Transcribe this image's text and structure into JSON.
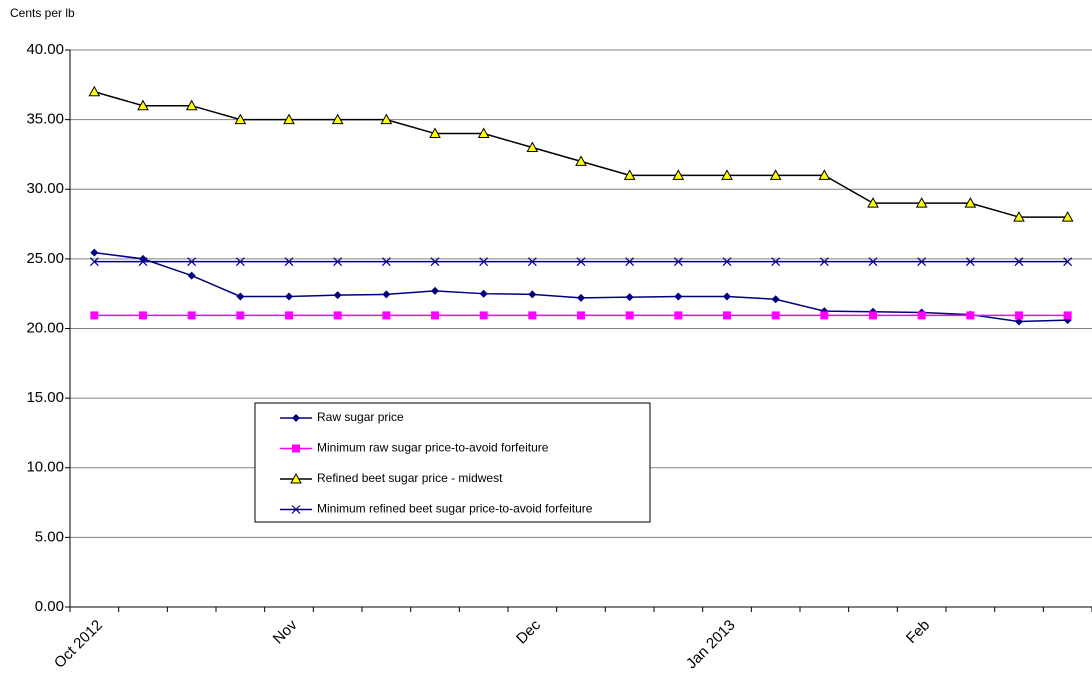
{
  "chart_data": {
    "type": "line",
    "y_label": "Cents per lb",
    "categories": [
      "Oct 2012",
      null,
      null,
      null,
      "Nov",
      null,
      null,
      null,
      null,
      "Dec",
      null,
      null,
      null,
      "Jan 2013",
      null,
      null,
      null,
      "Feb",
      null,
      null,
      null
    ],
    "series": [
      {
        "name": "Raw sugar price",
        "color": "#000080",
        "marker": "diamond",
        "values": [
          25.45,
          25.0,
          23.8,
          22.3,
          22.3,
          22.4,
          22.45,
          22.7,
          22.5,
          22.45,
          22.2,
          22.25,
          22.3,
          22.3,
          22.1,
          21.25,
          21.2,
          21.15,
          21.0,
          20.5,
          20.6
        ]
      },
      {
        "name": "Minimum raw sugar price-to-avoid forfeiture",
        "color": "#ff00ff",
        "marker": "square",
        "values": [
          20.94,
          20.94,
          20.94,
          20.94,
          20.94,
          20.94,
          20.94,
          20.94,
          20.94,
          20.94,
          20.94,
          20.94,
          20.94,
          20.94,
          20.94,
          20.94,
          20.94,
          20.94,
          20.94,
          20.94,
          20.94
        ]
      },
      {
        "name": "Refined beet sugar price - midwest",
        "color": "#000000",
        "marker": "triangle",
        "marker_fill": "#ffff00",
        "values": [
          37,
          36,
          36,
          35,
          35,
          35,
          35,
          34,
          34,
          33,
          32,
          31,
          31,
          31,
          31,
          31,
          29,
          29,
          29,
          28,
          28
        ]
      },
      {
        "name": "Minimum refined beet sugar price-to-avoid forfeiture",
        "color": "#000080",
        "marker": "x",
        "values": [
          24.8,
          24.8,
          24.8,
          24.8,
          24.8,
          24.8,
          24.8,
          24.8,
          24.8,
          24.8,
          24.8,
          24.8,
          24.8,
          24.8,
          24.8,
          24.8,
          24.8,
          24.8,
          24.8,
          24.8,
          24.8
        ]
      }
    ],
    "ylim": [
      0,
      40
    ],
    "yticks": [
      {
        "value": 0,
        "label": "0.00"
      },
      {
        "value": 5,
        "label": "5.00"
      },
      {
        "value": 10,
        "label": "10.00"
      },
      {
        "value": 15,
        "label": "15.00"
      },
      {
        "value": 20,
        "label": "20.00"
      },
      {
        "value": 25,
        "label": "25.00"
      },
      {
        "value": 30,
        "label": "30.00"
      },
      {
        "value": 35,
        "label": "35.00"
      },
      {
        "value": 40,
        "label": "40.00"
      }
    ],
    "grid": true
  }
}
